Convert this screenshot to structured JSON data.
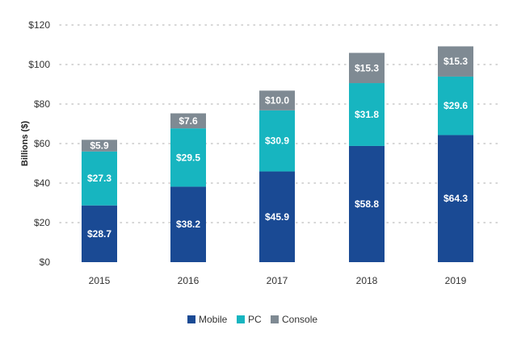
{
  "chart_data": {
    "type": "bar",
    "stacked": true,
    "categories": [
      "2015",
      "2016",
      "2017",
      "2018",
      "2019"
    ],
    "series": [
      {
        "name": "Mobile",
        "color": "#1a4a94",
        "values": [
          28.7,
          38.2,
          45.9,
          58.8,
          64.3
        ]
      },
      {
        "name": "PC",
        "color": "#17b5c0",
        "values": [
          27.3,
          29.5,
          30.9,
          31.8,
          29.6
        ]
      },
      {
        "name": "Console",
        "color": "#7f8a93",
        "values": [
          5.9,
          7.6,
          10.0,
          15.3,
          15.3
        ]
      }
    ],
    "data_labels": [
      [
        "$28.7",
        "$38.2",
        "$45.9",
        "$58.8",
        "$64.3"
      ],
      [
        "$27.3",
        "$29.5",
        "$30.9",
        "$31.8",
        "$29.6"
      ],
      [
        "$5.9",
        "$7.6",
        "$10.0",
        "$15.3",
        "$15.3"
      ]
    ],
    "title": "",
    "xlabel": "",
    "ylabel": "Billions ($)",
    "ylim": [
      0,
      120
    ],
    "yticks": [
      0,
      20,
      40,
      60,
      80,
      100,
      120
    ],
    "ytick_labels": [
      "$0",
      "$20",
      "$40",
      "$60",
      "$80",
      "$100",
      "$120"
    ],
    "grid": "horizontal dotted",
    "legend_position": "bottom-center"
  }
}
